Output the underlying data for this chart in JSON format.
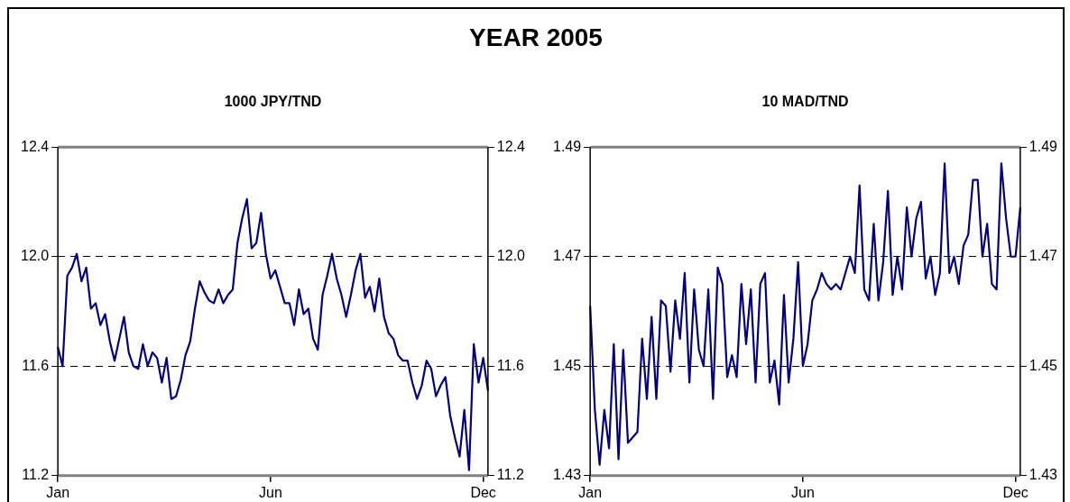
{
  "chart_data": [
    {
      "type": "other",
      "title": "YEAR 2005"
    },
    {
      "type": "line",
      "title": "1000 JPY/TND",
      "color": "#000080",
      "marker": "none",
      "grid": "y",
      "categories": [
        "Jan",
        null,
        null,
        null,
        null,
        null,
        null,
        null,
        null,
        null,
        null,
        null,
        null,
        null,
        null,
        null,
        null,
        null,
        null,
        null,
        null,
        null,
        null,
        null,
        null,
        null,
        null,
        null,
        null,
        null,
        null,
        null,
        null,
        null,
        null,
        null,
        null,
        null,
        null,
        null,
        null,
        null,
        null,
        null,
        null,
        "Jun",
        null,
        null,
        null,
        null,
        null,
        null,
        null,
        null,
        null,
        null,
        null,
        null,
        null,
        null,
        null,
        null,
        null,
        null,
        null,
        null,
        null,
        null,
        null,
        null,
        null,
        null,
        null,
        null,
        null,
        null,
        null,
        null,
        null,
        null,
        null,
        null,
        null,
        null,
        null,
        null,
        null,
        null,
        null,
        null,
        "Dec",
        null
      ],
      "values": [
        11.67,
        11.6,
        11.93,
        11.96,
        12.01,
        11.91,
        11.96,
        11.81,
        11.83,
        11.75,
        11.79,
        11.69,
        11.62,
        11.7,
        11.78,
        11.65,
        11.6,
        11.59,
        11.68,
        11.6,
        11.65,
        11.63,
        11.54,
        11.63,
        11.48,
        11.49,
        11.55,
        11.64,
        11.69,
        11.81,
        11.91,
        11.87,
        11.84,
        11.83,
        11.88,
        11.83,
        11.86,
        11.88,
        12.05,
        12.14,
        12.21,
        12.03,
        12.05,
        12.16,
        12.01,
        11.92,
        11.95,
        11.89,
        11.83,
        11.83,
        11.75,
        11.88,
        11.79,
        11.81,
        11.7,
        11.66,
        11.86,
        11.93,
        12.01,
        11.92,
        11.86,
        11.78,
        11.86,
        11.95,
        12.01,
        11.85,
        11.89,
        11.8,
        11.92,
        11.78,
        11.72,
        11.7,
        11.64,
        11.62,
        11.62,
        11.54,
        11.48,
        11.53,
        11.62,
        11.59,
        11.49,
        11.53,
        11.56,
        11.42,
        11.34,
        11.27,
        11.44,
        11.22,
        11.68,
        11.54,
        11.63,
        11.51
      ],
      "ylim": [
        11.2,
        12.4
      ],
      "yticks": [
        11.2,
        11.6,
        {
          "value": 12,
          "label": "12.0"
        },
        12.4
      ],
      "y2lim": [
        11.2,
        12.4
      ],
      "y2ticks": [
        11.2,
        11.6,
        {
          "value": 12,
          "label": "12.0"
        },
        12.4
      ]
    },
    {
      "type": "line",
      "title": "10 MAD/TND",
      "color": "#000080",
      "marker": "none",
      "grid": "y",
      "categories": [
        "Jan",
        null,
        null,
        null,
        null,
        null,
        null,
        null,
        null,
        null,
        null,
        null,
        null,
        null,
        null,
        null,
        null,
        null,
        null,
        null,
        null,
        null,
        null,
        null,
        null,
        null,
        null,
        null,
        null,
        null,
        null,
        null,
        null,
        null,
        null,
        null,
        null,
        null,
        null,
        null,
        null,
        null,
        null,
        null,
        null,
        "Jun",
        null,
        null,
        null,
        null,
        null,
        null,
        null,
        null,
        null,
        null,
        null,
        null,
        null,
        null,
        null,
        null,
        null,
        null,
        null,
        null,
        null,
        null,
        null,
        null,
        null,
        null,
        null,
        null,
        null,
        null,
        null,
        null,
        null,
        null,
        null,
        null,
        null,
        null,
        null,
        null,
        null,
        null,
        null,
        null,
        "Dec",
        null
      ],
      "values": [
        1.461,
        1.442,
        1.432,
        1.442,
        1.435,
        1.454,
        1.433,
        1.453,
        1.436,
        1.437,
        1.438,
        1.455,
        1.444,
        1.459,
        1.444,
        1.462,
        1.461,
        1.449,
        1.462,
        1.455,
        1.467,
        1.447,
        1.464,
        1.453,
        1.45,
        1.464,
        1.444,
        1.468,
        1.465,
        1.448,
        1.452,
        1.448,
        1.465,
        1.454,
        1.464,
        1.447,
        1.465,
        1.467,
        1.447,
        1.451,
        1.443,
        1.463,
        1.447,
        1.455,
        1.469,
        1.45,
        1.454,
        1.462,
        1.464,
        1.467,
        1.465,
        1.464,
        1.465,
        1.464,
        1.467,
        1.47,
        1.467,
        1.483,
        1.464,
        1.462,
        1.476,
        1.462,
        1.469,
        1.482,
        1.463,
        1.47,
        1.464,
        1.479,
        1.47,
        1.477,
        1.48,
        1.466,
        1.47,
        1.463,
        1.467,
        1.487,
        1.467,
        1.47,
        1.465,
        1.472,
        1.474,
        1.484,
        1.484,
        1.47,
        1.476,
        1.465,
        1.464,
        1.487,
        1.477,
        1.47,
        1.47,
        1.479
      ],
      "ylim": [
        1.43,
        1.49
      ],
      "yticks": [
        1.43,
        1.45,
        1.47,
        1.49
      ],
      "y2lim": [
        1.43,
        1.49
      ],
      "y2ticks": [
        1.43,
        1.45,
        1.47,
        1.49
      ]
    }
  ]
}
